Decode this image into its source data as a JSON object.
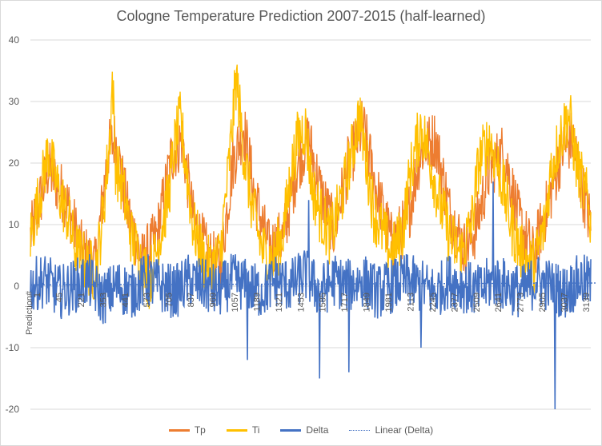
{
  "chart_data": {
    "type": "line",
    "title": "Cologne Temperature Prediction 2007-2015 (half-learned)",
    "xlabel": "Prediction#",
    "ylabel": "",
    "ylim": [
      -20,
      40
    ],
    "y_ticks": [
      -20,
      -10,
      0,
      10,
      20,
      30,
      40
    ],
    "x_range": [
      1,
      3100
    ],
    "x_ticks": [
      "1",
      "45",
      "221",
      "353",
      "441",
      "573",
      "705",
      "837",
      "969",
      "1057",
      "1189",
      "1321",
      "1453",
      "1585",
      "1717",
      "1849",
      "1981",
      "2113",
      "2245",
      "2377",
      "2509",
      "2641",
      "2773",
      "2905",
      "3037",
      "3139"
    ],
    "grid": true,
    "legend_position": "bottom",
    "series": [
      {
        "name": "Tp",
        "color": "#ed7d31",
        "style": "solid",
        "points": [
          [
            1,
            8
          ],
          [
            100,
            19
          ],
          [
            200,
            14
          ],
          [
            280,
            6
          ],
          [
            360,
            3
          ],
          [
            430,
            22
          ],
          [
            470,
            24
          ],
          [
            540,
            12
          ],
          [
            620,
            4
          ],
          [
            700,
            8
          ],
          [
            780,
            21
          ],
          [
            840,
            24
          ],
          [
            900,
            11
          ],
          [
            980,
            5
          ],
          [
            1050,
            3
          ],
          [
            1120,
            20
          ],
          [
            1180,
            26
          ],
          [
            1240,
            15
          ],
          [
            1320,
            6
          ],
          [
            1400,
            8
          ],
          [
            1480,
            20
          ],
          [
            1540,
            24
          ],
          [
            1600,
            16
          ],
          [
            1680,
            9
          ],
          [
            1760,
            20
          ],
          [
            1840,
            26
          ],
          [
            1920,
            15
          ],
          [
            2000,
            7
          ],
          [
            2080,
            10
          ],
          [
            2160,
            22
          ],
          [
            2240,
            24
          ],
          [
            2320,
            12
          ],
          [
            2400,
            6
          ],
          [
            2460,
            9
          ],
          [
            2540,
            19
          ],
          [
            2620,
            22
          ],
          [
            2700,
            11
          ],
          [
            2780,
            5
          ],
          [
            2860,
            13
          ],
          [
            2940,
            22
          ],
          [
            3000,
            24
          ],
          [
            3060,
            15
          ],
          [
            3130,
            6
          ]
        ]
      },
      {
        "name": "Ti",
        "color": "#ffc000",
        "style": "solid",
        "points": [
          [
            1,
            8
          ],
          [
            60,
            16
          ],
          [
            100,
            22
          ],
          [
            150,
            16
          ],
          [
            200,
            12
          ],
          [
            250,
            6
          ],
          [
            300,
            4
          ],
          [
            360,
            2
          ],
          [
            400,
            11
          ],
          [
            440,
            24
          ],
          [
            455,
            34
          ],
          [
            470,
            20
          ],
          [
            510,
            16
          ],
          [
            560,
            8
          ],
          [
            610,
            4
          ],
          [
            660,
            1
          ],
          [
            700,
            6
          ],
          [
            760,
            14
          ],
          [
            800,
            23
          ],
          [
            830,
            27
          ],
          [
            860,
            20
          ],
          [
            900,
            10
          ],
          [
            960,
            4
          ],
          [
            1000,
            3
          ],
          [
            1050,
            5
          ],
          [
            1100,
            20
          ],
          [
            1140,
            34
          ],
          [
            1180,
            22
          ],
          [
            1220,
            14
          ],
          [
            1280,
            6
          ],
          [
            1340,
            4
          ],
          [
            1400,
            9
          ],
          [
            1440,
            18
          ],
          [
            1480,
            24
          ],
          [
            1520,
            26
          ],
          [
            1560,
            16
          ],
          [
            1600,
            12
          ],
          [
            1660,
            8
          ],
          [
            1720,
            14
          ],
          [
            1780,
            22
          ],
          [
            1820,
            28
          ],
          [
            1860,
            20
          ],
          [
            1900,
            12
          ],
          [
            1960,
            8
          ],
          [
            2000,
            5
          ],
          [
            2060,
            9
          ],
          [
            2100,
            18
          ],
          [
            2160,
            26
          ],
          [
            2200,
            22
          ],
          [
            2260,
            14
          ],
          [
            2320,
            8
          ],
          [
            2380,
            5
          ],
          [
            2440,
            10
          ],
          [
            2480,
            20
          ],
          [
            2540,
            24
          ],
          [
            2600,
            18
          ],
          [
            2660,
            10
          ],
          [
            2720,
            5
          ],
          [
            2780,
            3
          ],
          [
            2840,
            9
          ],
          [
            2880,
            19
          ],
          [
            2940,
            25
          ],
          [
            2980,
            28
          ],
          [
            3020,
            20
          ],
          [
            3080,
            14
          ],
          [
            3130,
            5
          ]
        ]
      },
      {
        "name": "Delta",
        "color": "#4472c4",
        "style": "solid",
        "points": [
          [
            1,
            0
          ],
          [
            80,
            1
          ],
          [
            160,
            -1
          ],
          [
            240,
            0
          ],
          [
            320,
            1
          ],
          [
            400,
            -2
          ],
          [
            480,
            0
          ],
          [
            560,
            -1
          ],
          [
            640,
            1
          ],
          [
            720,
            0
          ],
          [
            800,
            -1
          ],
          [
            880,
            1
          ],
          [
            960,
            0
          ],
          [
            1040,
            -1
          ],
          [
            1120,
            1
          ],
          [
            1200,
            0
          ],
          [
            1280,
            -1
          ],
          [
            1360,
            1
          ],
          [
            1440,
            0
          ],
          [
            1520,
            2
          ],
          [
            1600,
            -1
          ],
          [
            1680,
            1
          ],
          [
            1760,
            0
          ],
          [
            1840,
            1
          ],
          [
            1920,
            -1
          ],
          [
            2000,
            0
          ],
          [
            2080,
            1
          ],
          [
            2160,
            0
          ],
          [
            2240,
            -1
          ],
          [
            2320,
            1
          ],
          [
            2400,
            0
          ],
          [
            2480,
            -1
          ],
          [
            2560,
            1
          ],
          [
            2640,
            0
          ],
          [
            2720,
            -1
          ],
          [
            2800,
            1
          ],
          [
            2880,
            0
          ],
          [
            2960,
            -1
          ],
          [
            3040,
            1
          ],
          [
            3130,
            0
          ]
        ],
        "extremes": [
          [
            1200,
            -12
          ],
          [
            1540,
            14
          ],
          [
            1600,
            -15
          ],
          [
            1760,
            -14
          ],
          [
            2160,
            -10
          ],
          [
            2900,
            -20
          ],
          [
            2560,
            17
          ]
        ]
      },
      {
        "name": "Linear (Delta)",
        "color": "#4472c4",
        "style": "dotted",
        "points": [
          [
            1,
            0.2
          ],
          [
            3130,
            0.5
          ]
        ]
      }
    ]
  }
}
